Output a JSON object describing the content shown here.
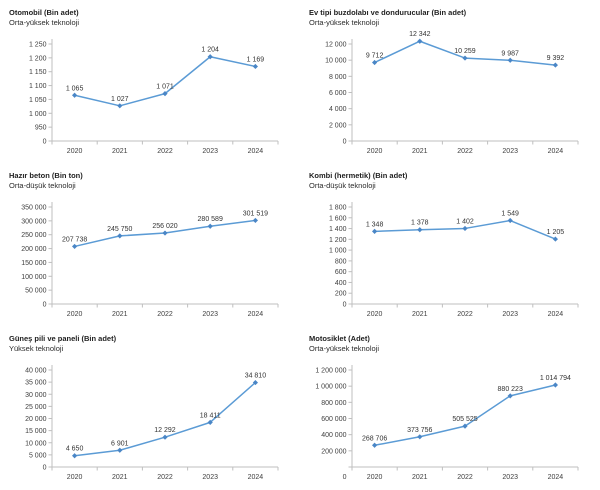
{
  "style": {
    "background": "#ffffff",
    "line_color": "#5B9BD5",
    "marker_color": "#4A86C6",
    "axis_color": "#BFBFBF",
    "tick_label_color": "#404040",
    "data_label_color": "#333333",
    "title_color": "#1f1f1f"
  },
  "chart_data": [
    {
      "type": "line",
      "title": "Otomobil (Bin adet)",
      "subtitle": "Orta-yüksek teknoloji",
      "categories": [
        "2020",
        "2021",
        "2022",
        "2023",
        "2024"
      ],
      "values": [
        1065,
        1027,
        1071,
        1204,
        1169
      ],
      "value_labels": [
        "1 065",
        "1 027",
        "1 071",
        "1 204",
        "1 169"
      ],
      "y_ticks": [
        0,
        950,
        1000,
        1050,
        1100,
        1150,
        1200,
        1250
      ],
      "y_tick_labels": [
        "0",
        "950",
        "1 000",
        "1 050",
        "1 100",
        "1 150",
        "1 200",
        "1 250"
      ],
      "axis_break_after_zero": true,
      "grid": false,
      "legend": "none",
      "markers": "diamond"
    },
    {
      "type": "line",
      "title": "Ev tipi buzdolabı ve dondurucular (Bin adet)",
      "subtitle": "Orta-yüksek teknoloji",
      "categories": [
        "2020",
        "2021",
        "2022",
        "2023",
        "2024"
      ],
      "values": [
        9712,
        12342,
        10259,
        9987,
        9392
      ],
      "value_labels": [
        "9 712",
        "12 342",
        "10 259",
        "9 987",
        "9 392"
      ],
      "y_ticks": [
        0,
        2000,
        4000,
        6000,
        8000,
        10000,
        12000
      ],
      "y_tick_labels": [
        "0",
        "2 000",
        "4 000",
        "6 000",
        "8 000",
        "10 000",
        "12 000"
      ],
      "axis_break_after_zero": false,
      "grid": false,
      "legend": "none",
      "markers": "diamond"
    },
    {
      "type": "line",
      "title": "Hazır beton (Bin ton)",
      "subtitle": "Orta-düşük teknoloji",
      "categories": [
        "2020",
        "2021",
        "2022",
        "2023",
        "2024"
      ],
      "values": [
        207738,
        245750,
        256020,
        280589,
        301519
      ],
      "value_labels": [
        "207 738",
        "245 750",
        "256 020",
        "280 589",
        "301 519"
      ],
      "y_ticks": [
        0,
        50000,
        100000,
        150000,
        200000,
        250000,
        300000,
        350000
      ],
      "y_tick_labels": [
        "0",
        "50 000",
        "100 000",
        "150 000",
        "200 000",
        "250 000",
        "300 000",
        "350 000"
      ],
      "axis_break_after_zero": false,
      "grid": false,
      "legend": "none",
      "markers": "diamond"
    },
    {
      "type": "line",
      "title": "Kombi (hermetik) (Bin adet)",
      "subtitle": "Orta-düşük teknoloji",
      "categories": [
        "2020",
        "2021",
        "2022",
        "2023",
        "2024"
      ],
      "values": [
        1348,
        1378,
        1402,
        1549,
        1205
      ],
      "value_labels": [
        "1 348",
        "1 378",
        "1 402",
        "1 549",
        "1 205"
      ],
      "y_ticks": [
        0,
        200,
        400,
        600,
        800,
        1000,
        1200,
        1400,
        1600,
        1800
      ],
      "y_tick_labels": [
        "0",
        "200",
        "400",
        "600",
        "800",
        "1 000",
        "1 200",
        "1 400",
        "1 600",
        "1 800"
      ],
      "axis_break_after_zero": false,
      "grid": false,
      "legend": "none",
      "markers": "diamond"
    },
    {
      "type": "line",
      "title": "Güneş pili ve paneli (Bin adet)",
      "subtitle": "Yüksek teknoloji",
      "categories": [
        "2020",
        "2021",
        "2022",
        "2023",
        "2024"
      ],
      "values": [
        4650,
        6901,
        12292,
        18411,
        34810
      ],
      "value_labels": [
        "4 650",
        "6 901",
        "12 292",
        "18 411",
        "34 810"
      ],
      "y_ticks": [
        0,
        5000,
        10000,
        15000,
        20000,
        25000,
        30000,
        35000,
        40000
      ],
      "y_tick_labels": [
        "0",
        "5 000",
        "10 000",
        "15 000",
        "20 000",
        "25 000",
        "30 000",
        "35 000",
        "40 000"
      ],
      "axis_break_after_zero": false,
      "grid": false,
      "legend": "none",
      "markers": "diamond"
    },
    {
      "type": "line",
      "title": "Motosiklet (Adet)",
      "subtitle": "Orta-yüksek teknoloji",
      "categories": [
        "2020",
        "2021",
        "2022",
        "2023",
        "2024"
      ],
      "values": [
        268706,
        373756,
        505525,
        880223,
        1014794
      ],
      "value_labels": [
        "268 706",
        "373 756",
        "505 525",
        "880 223",
        "1 014 794"
      ],
      "y_ticks": [
        0,
        200000,
        400000,
        600000,
        800000,
        1000000,
        1200000
      ],
      "y_tick_labels": [
        "0",
        "200 000",
        "400 000",
        "600 000",
        "800 000",
        "1 000 000",
        "1 200 000"
      ],
      "axis_break_after_zero": false,
      "zero_label_on_category_row": true,
      "grid": false,
      "legend": "none",
      "markers": "diamond"
    }
  ]
}
